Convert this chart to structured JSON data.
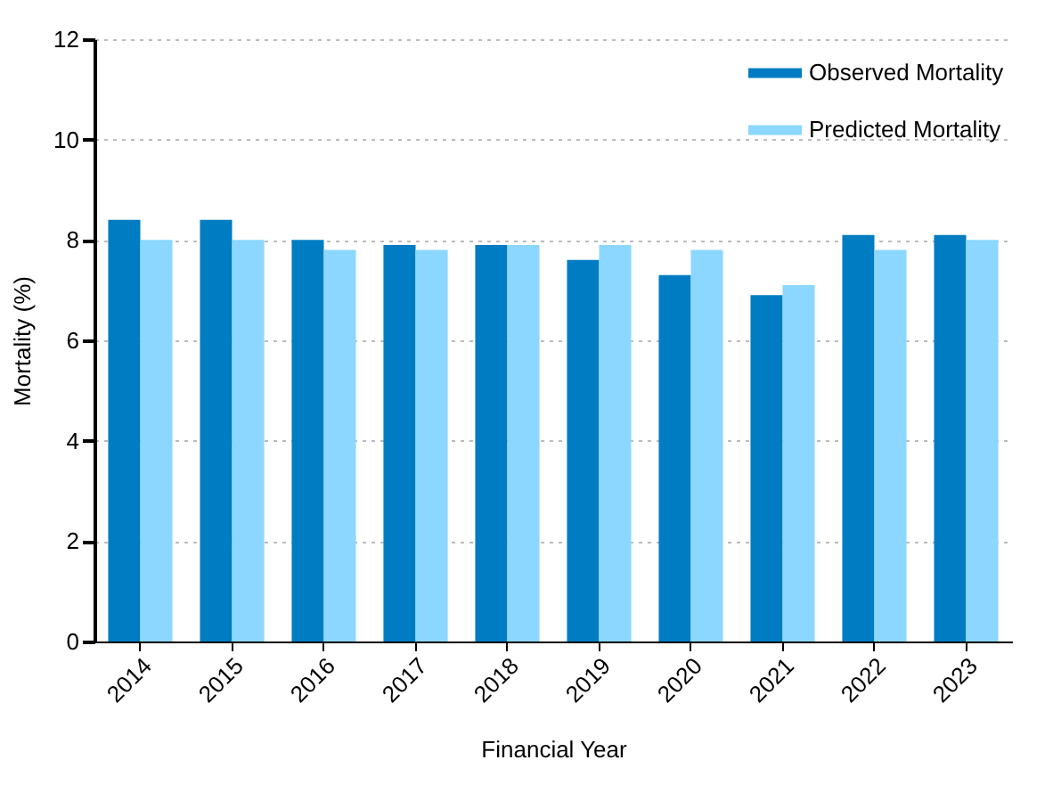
{
  "chart_data": {
    "type": "bar",
    "xlabel": "Financial Year",
    "ylabel": "Mortality (%)",
    "categories": [
      "2014",
      "2015",
      "2016",
      "2017",
      "2018",
      "2019",
      "2020",
      "2021",
      "2022",
      "2023"
    ],
    "series": [
      {
        "name": "Observed Mortality",
        "color": "#007cc3",
        "values": [
          8.4,
          8.4,
          8.0,
          7.9,
          7.9,
          7.6,
          7.3,
          6.9,
          8.1,
          8.1
        ]
      },
      {
        "name": "Predicted Mortality",
        "color": "#8cd7ff",
        "values": [
          8.0,
          8.0,
          7.8,
          7.8,
          7.9,
          7.9,
          7.8,
          7.1,
          7.8,
          8.0
        ]
      }
    ],
    "ylim": [
      0,
      12
    ],
    "yticks": [
      0,
      2,
      4,
      6,
      8,
      10,
      12
    ],
    "grid": "y",
    "legend": "top right"
  }
}
